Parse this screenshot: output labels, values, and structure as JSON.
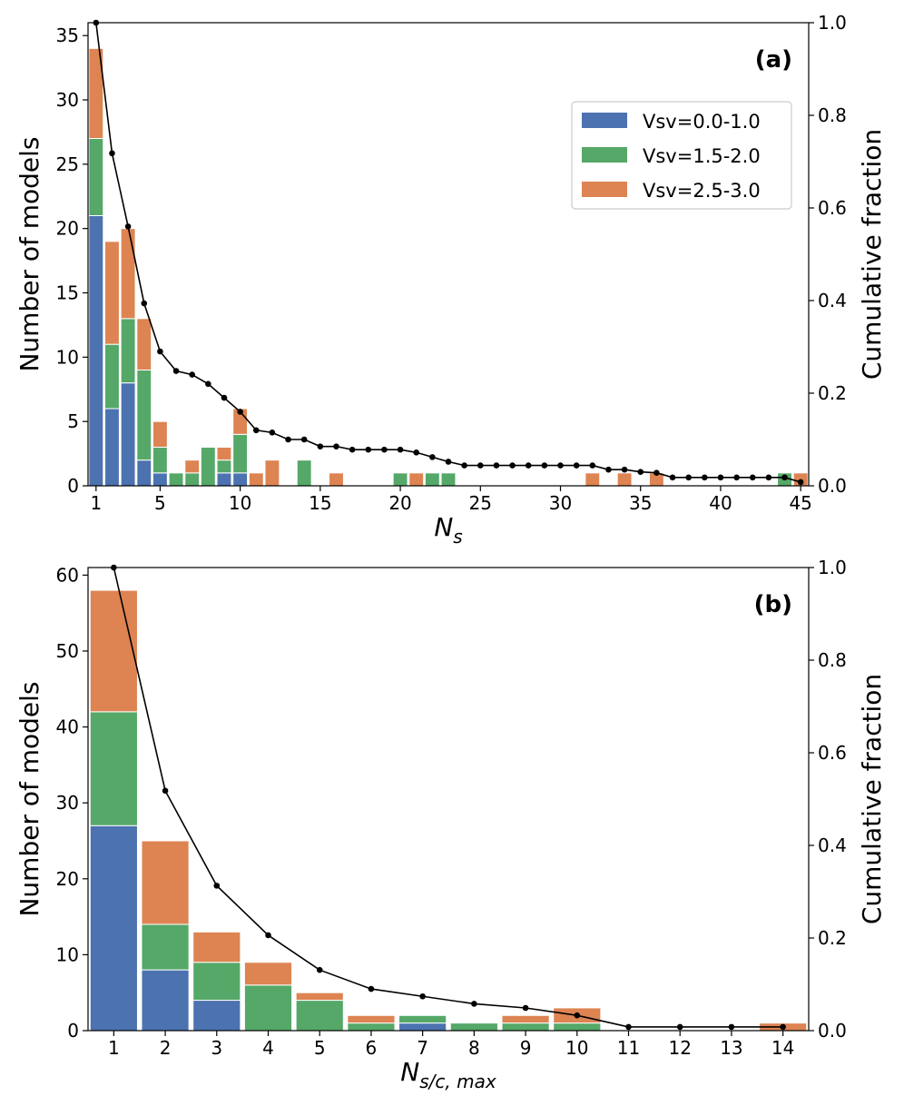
{
  "colors": {
    "vsv_low": "#4c72b0",
    "vsv_mid": "#55a868",
    "vsv_high": "#dd8452",
    "cumulative": "#000000"
  },
  "chart_data": [
    {
      "type": "bar",
      "stacked": true,
      "panel_label": "(a)",
      "xlabel_base": "N",
      "xlabel_sub": "s",
      "ylabel": "Number of models",
      "ylabel_right": "Cumulative fraction",
      "xlim": [
        0.5,
        45.5
      ],
      "ylim": [
        0,
        36
      ],
      "ylim_right": [
        0,
        1.0
      ],
      "x_ticks": [
        1,
        5,
        10,
        15,
        20,
        25,
        30,
        35,
        40,
        45
      ],
      "y_ticks": [
        0,
        5,
        10,
        15,
        20,
        25,
        30,
        35
      ],
      "y_ticks_right": [
        "0.0",
        "0.2",
        "0.4",
        "0.6",
        "0.8",
        "1.0"
      ],
      "legend": {
        "position": "upper-right",
        "entries": [
          "Vsv=0.0-1.0",
          "Vsv=1.5-2.0",
          "Vsv=2.5-3.0"
        ]
      },
      "x": [
        1,
        2,
        3,
        4,
        5,
        6,
        7,
        8,
        9,
        10,
        11,
        12,
        13,
        14,
        15,
        16,
        17,
        18,
        19,
        20,
        21,
        22,
        23,
        24,
        25,
        26,
        27,
        28,
        29,
        30,
        31,
        32,
        33,
        34,
        35,
        36,
        37,
        38,
        39,
        40,
        41,
        42,
        43,
        44,
        45
      ],
      "series": [
        {
          "name": "Vsv=0.0-1.0",
          "values": [
            21,
            6,
            8,
            2,
            1,
            0,
            0,
            0,
            1,
            1,
            0,
            0,
            0,
            0,
            0,
            0,
            0,
            0,
            0,
            0,
            0,
            0,
            0,
            0,
            0,
            0,
            0,
            0,
            0,
            0,
            0,
            0,
            0,
            0,
            0,
            0,
            0,
            0,
            0,
            0,
            0,
            0,
            0,
            0,
            0
          ]
        },
        {
          "name": "Vsv=1.5-2.0",
          "values": [
            6,
            5,
            5,
            7,
            2,
            1,
            1,
            3,
            1,
            3,
            0,
            0,
            0,
            2,
            0,
            0,
            0,
            0,
            0,
            1,
            0,
            1,
            1,
            0,
            0,
            0,
            0,
            0,
            0,
            0,
            0,
            0,
            0,
            0,
            0,
            0,
            0,
            0,
            0,
            0,
            0,
            0,
            0,
            1,
            0
          ]
        },
        {
          "name": "Vsv=2.5-3.0",
          "values": [
            7,
            8,
            7,
            4,
            2,
            0,
            1,
            0,
            1,
            2,
            1,
            2,
            0,
            0,
            0,
            1,
            0,
            0,
            0,
            0,
            1,
            0,
            0,
            0,
            0,
            0,
            0,
            0,
            0,
            0,
            0,
            1,
            0,
            1,
            0,
            1,
            0,
            0,
            0,
            0,
            0,
            0,
            0,
            0,
            1
          ]
        }
      ],
      "cumulative": [
        1.0,
        0.718,
        0.56,
        0.394,
        0.29,
        0.248,
        0.24,
        0.22,
        0.19,
        0.16,
        0.12,
        0.115,
        0.1,
        0.1,
        0.085,
        0.085,
        0.078,
        0.078,
        0.078,
        0.078,
        0.072,
        0.062,
        0.052,
        0.044,
        0.044,
        0.044,
        0.044,
        0.044,
        0.044,
        0.044,
        0.044,
        0.044,
        0.035,
        0.035,
        0.03,
        0.028,
        0.018,
        0.018,
        0.018,
        0.018,
        0.018,
        0.018,
        0.018,
        0.018,
        0.008
      ]
    },
    {
      "type": "bar",
      "stacked": true,
      "panel_label": "(b)",
      "xlabel_base": "N",
      "xlabel_sub": "s/c, max",
      "ylabel": "Number of models",
      "ylabel_right": "Cumulative fraction",
      "xlim": [
        0.5,
        14.5
      ],
      "ylim": [
        0,
        61
      ],
      "ylim_right": [
        0,
        1.0
      ],
      "x_ticks": [
        1,
        2,
        3,
        4,
        5,
        6,
        7,
        8,
        9,
        10,
        11,
        12,
        13,
        14
      ],
      "y_ticks": [
        0,
        10,
        20,
        30,
        40,
        50,
        60
      ],
      "y_ticks_right": [
        "0.0",
        "0.2",
        "0.4",
        "0.6",
        "0.8",
        "1.0"
      ],
      "x": [
        1,
        2,
        3,
        4,
        5,
        6,
        7,
        8,
        9,
        10,
        11,
        12,
        13,
        14
      ],
      "series": [
        {
          "name": "Vsv=0.0-1.0",
          "values": [
            27,
            8,
            4,
            0,
            0,
            0,
            1,
            0,
            0,
            0,
            0,
            0,
            0,
            0
          ]
        },
        {
          "name": "Vsv=1.5-2.0",
          "values": [
            15,
            6,
            5,
            6,
            4,
            1,
            1,
            1,
            1,
            1,
            0,
            0,
            0,
            0
          ]
        },
        {
          "name": "Vsv=2.5-3.0",
          "values": [
            16,
            11,
            4,
            3,
            1,
            1,
            0,
            0,
            1,
            2,
            0,
            0,
            0,
            1
          ]
        }
      ],
      "cumulative": [
        1.0,
        0.518,
        0.313,
        0.206,
        0.131,
        0.09,
        0.074,
        0.058,
        0.049,
        0.033,
        0.008,
        0.008,
        0.008,
        0.008
      ]
    }
  ]
}
